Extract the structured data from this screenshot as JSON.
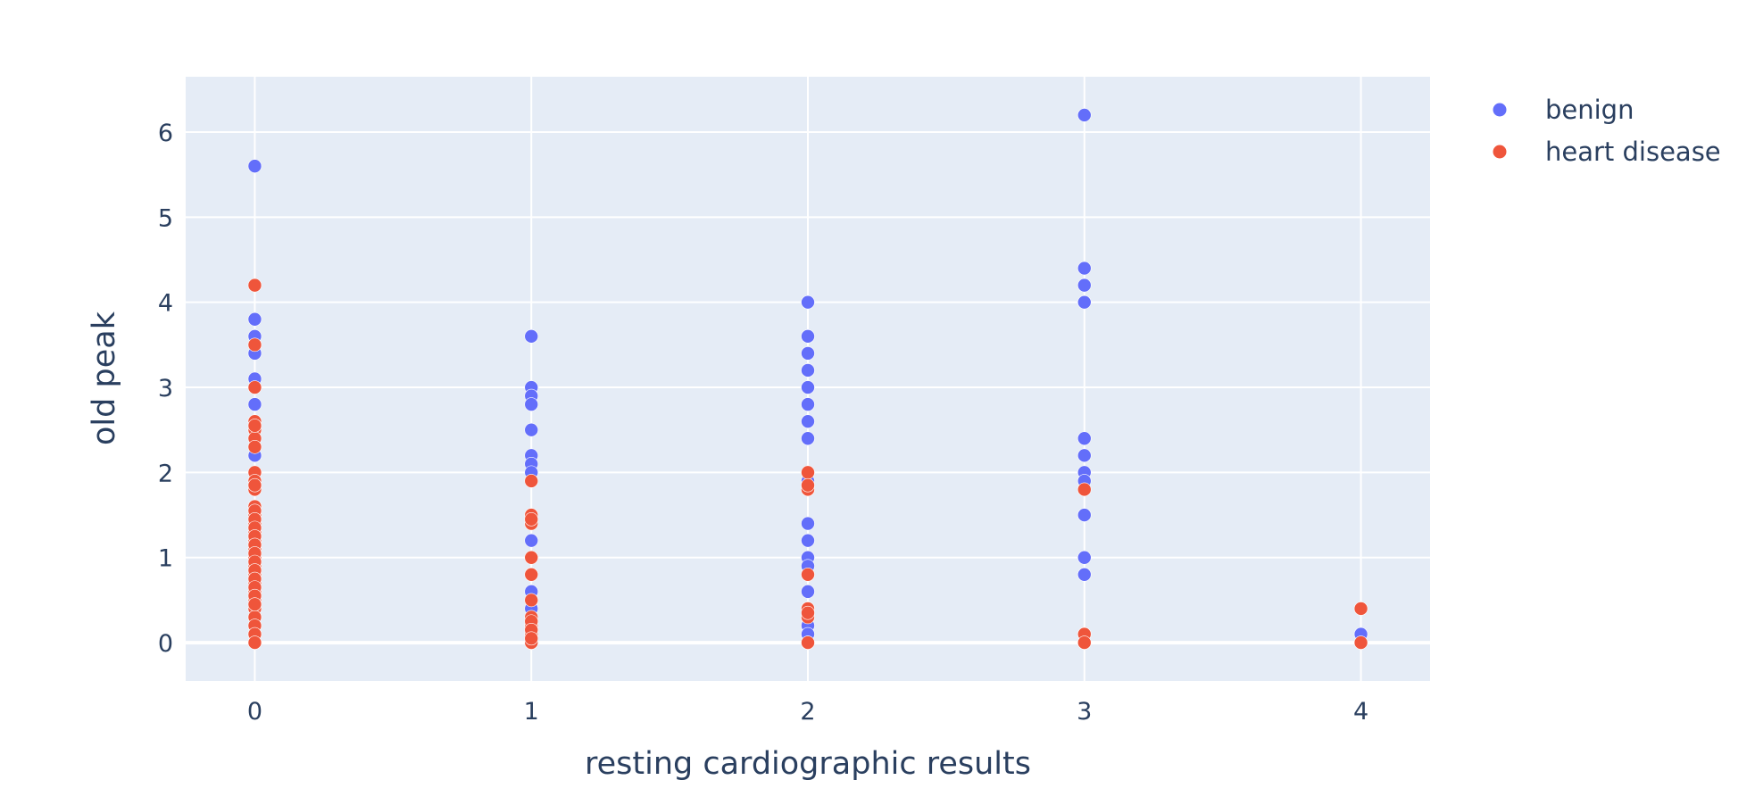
{
  "chart_data": {
    "type": "scatter",
    "title": "",
    "xlabel": "resting cardiographic results",
    "ylabel": "old peak",
    "xlim": [
      -0.25,
      4.25
    ],
    "ylim": [
      -0.45,
      6.65
    ],
    "x_ticks": [
      "0",
      "1",
      "2",
      "3",
      "4"
    ],
    "y_ticks": [
      "0",
      "1",
      "2",
      "3",
      "4",
      "5",
      "6"
    ],
    "grid": true,
    "legend_position": "top-right",
    "plot_background": "#E5ECF6",
    "series": [
      {
        "name": "benign",
        "color": "#636EFA",
        "x": [
          0,
          0,
          0,
          0,
          0,
          0,
          0,
          0,
          0,
          0,
          0,
          0,
          0,
          0,
          0,
          0,
          1,
          1,
          1,
          1,
          1,
          1,
          1,
          1,
          1,
          1,
          1,
          1,
          1,
          1,
          2,
          2,
          2,
          2,
          2,
          2,
          2,
          2,
          2,
          2,
          2,
          2,
          2,
          2,
          2,
          2,
          2,
          2,
          2,
          3,
          3,
          3,
          3,
          3,
          3,
          3,
          3,
          3,
          3,
          3,
          3,
          3,
          4
        ],
        "y": [
          5.6,
          3.8,
          3.6,
          3.4,
          3.1,
          2.8,
          2.5,
          2.2,
          1.6,
          1.2,
          1.0,
          0.8,
          0.6,
          0.3,
          0.1,
          0.0,
          3.6,
          3.0,
          2.9,
          2.8,
          2.5,
          2.2,
          2.1,
          2.0,
          1.2,
          0.6,
          0.4,
          0.2,
          0.1,
          0.0,
          4.0,
          3.6,
          3.4,
          3.2,
          3.0,
          2.8,
          2.6,
          2.4,
          1.9,
          1.4,
          1.2,
          1.0,
          0.9,
          0.6,
          0.4,
          0.3,
          0.2,
          0.1,
          0.0,
          6.2,
          4.4,
          4.2,
          4.0,
          2.4,
          2.2,
          2.0,
          1.9,
          1.5,
          1.0,
          0.8,
          0.1,
          0.0,
          0.1
        ]
      },
      {
        "name": "heart disease",
        "color": "#EF553B",
        "x": [
          0,
          0,
          0,
          0,
          0,
          0,
          0,
          0,
          0,
          0,
          0,
          0,
          0,
          0,
          0,
          0,
          0,
          0,
          0,
          0,
          0,
          0,
          0,
          0,
          0,
          0,
          0,
          0,
          0,
          0,
          0,
          0,
          0,
          0,
          0,
          0,
          0,
          0,
          0,
          0,
          0,
          1,
          1,
          1,
          1,
          1,
          1,
          1,
          1,
          1,
          1,
          1,
          1,
          1,
          1,
          2,
          2,
          2,
          2,
          2,
          2,
          2,
          2,
          3,
          3,
          3,
          4,
          4
        ],
        "y": [
          4.2,
          3.5,
          3.0,
          2.6,
          2.5,
          2.4,
          2.3,
          2.0,
          1.9,
          1.8,
          1.6,
          1.5,
          1.4,
          1.3,
          1.2,
          1.1,
          1.0,
          0.9,
          0.8,
          0.7,
          0.6,
          0.5,
          0.4,
          0.3,
          0.2,
          0.1,
          0.0,
          1.55,
          1.45,
          1.35,
          1.25,
          1.15,
          1.05,
          0.95,
          0.85,
          0.75,
          0.65,
          0.55,
          0.45,
          2.55,
          1.85,
          1.9,
          1.5,
          1.4,
          1.0,
          0.8,
          0.5,
          0.3,
          0.2,
          0.1,
          0.0,
          1.45,
          0.25,
          0.15,
          0.05,
          2.0,
          1.8,
          0.8,
          0.4,
          0.3,
          0.0,
          1.85,
          0.35,
          1.8,
          0.1,
          0.0,
          0.4,
          0.0
        ]
      }
    ]
  }
}
